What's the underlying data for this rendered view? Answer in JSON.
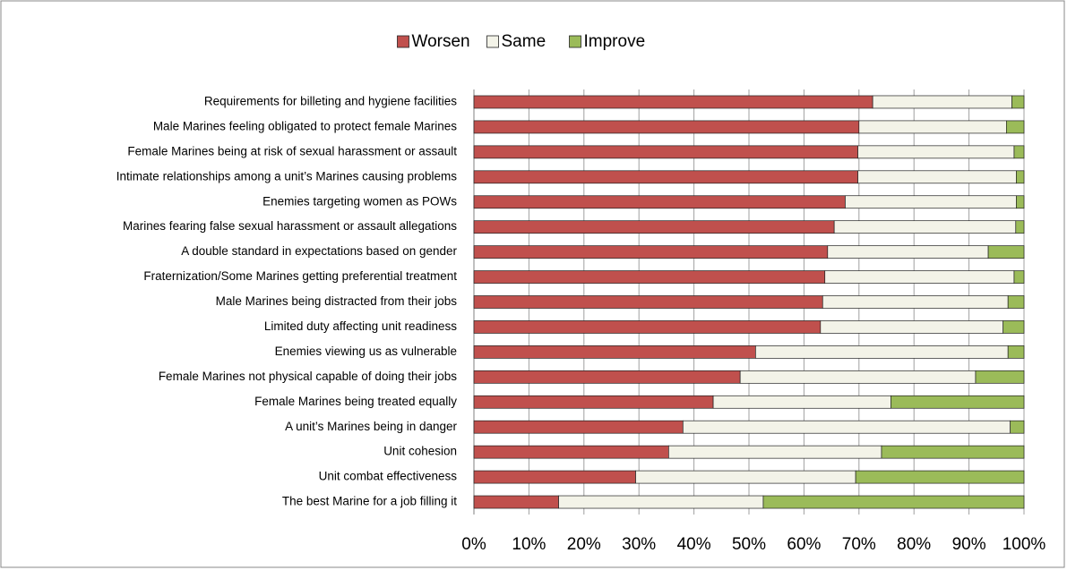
{
  "chart_data": {
    "type": "stacked-bar-horizontal",
    "categories": [
      "Requirements for billeting and hygiene facilities",
      "Male Marines feeling obligated to protect female Marines",
      "Female Marines being at risk of sexual harassment or assault",
      "Intimate relationships among a unit’s Marines causing problems",
      "Enemies targeting women as POWs",
      "Marines fearing false sexual harassment or assault allegations",
      "A double standard in expectations based on gender",
      "Fraternization/Some Marines getting preferential treatment",
      "Male Marines being distracted from their jobs",
      "Limited duty affecting unit readiness",
      "Enemies viewing us as vulnerable",
      "Female Marines not physical capable of doing their jobs",
      "Female Marines being treated equally",
      "A unit’s Marines being in danger",
      "Unit cohesion",
      "Unit combat effectiveness",
      "The best Marine for a job filling it"
    ],
    "series": [
      {
        "name": "Worsen",
        "color": "#c0504d",
        "values": [
          72.5,
          70,
          69.8,
          69.8,
          67.5,
          65.5,
          64.3,
          63.8,
          63.4,
          63,
          51.2,
          48.4,
          43.5,
          38,
          35.4,
          29.4,
          15.4
        ]
      },
      {
        "name": "Same",
        "color": "#f3f3e8",
        "values": [
          25.3,
          26.8,
          28.4,
          28.8,
          31.1,
          33,
          29.2,
          34.4,
          33.7,
          33.2,
          45.9,
          42.8,
          32.3,
          59.5,
          38.7,
          40,
          37.2
        ]
      },
      {
        "name": "Improve",
        "color": "#9bbb59",
        "values": [
          2.2,
          3.2,
          1.8,
          1.4,
          1.4,
          1.5,
          6.5,
          1.8,
          2.9,
          3.8,
          2.9,
          8.8,
          24.2,
          2.5,
          25.9,
          30.6,
          47.4
        ]
      }
    ],
    "xlim": [
      0,
      100
    ],
    "xticks": [
      {
        "value": 0,
        "label": "0%"
      },
      {
        "value": 10,
        "label": "10%"
      },
      {
        "value": 20,
        "label": "20%"
      },
      {
        "value": 30,
        "label": "30%"
      },
      {
        "value": 40,
        "label": "40%"
      },
      {
        "value": 50,
        "label": "50%"
      },
      {
        "value": 60,
        "label": "60%"
      },
      {
        "value": 70,
        "label": "70%"
      },
      {
        "value": 80,
        "label": "80%"
      },
      {
        "value": 90,
        "label": "90%"
      },
      {
        "value": 100,
        "label": "100%"
      }
    ],
    "grid": true,
    "legend": "top"
  }
}
